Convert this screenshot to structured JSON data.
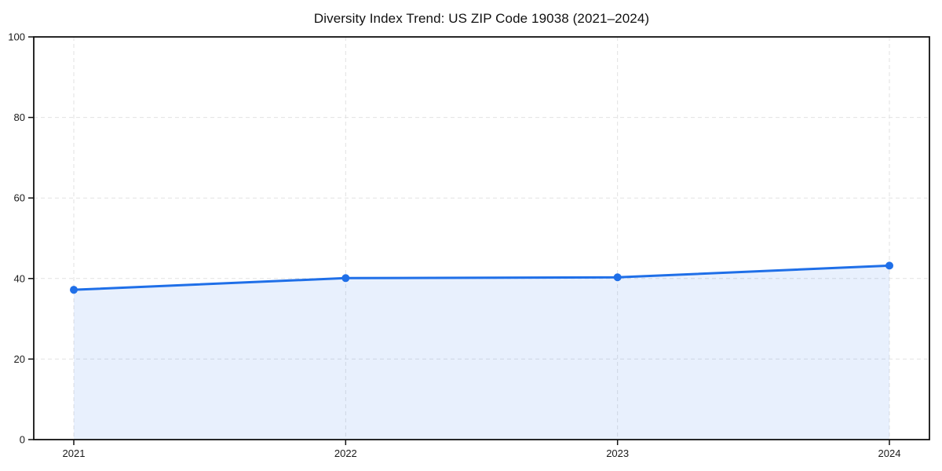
{
  "chart_data": {
    "type": "area",
    "title": "Diversity Index Trend: US ZIP Code 19038 (2021–2024)",
    "x": [
      2021,
      2022,
      2023,
      2024
    ],
    "xticklabels": [
      "2021",
      "2022",
      "2023",
      "2024"
    ],
    "series": [
      {
        "name": "Diversity Index",
        "values": [
          37.2,
          40.1,
          40.3,
          43.2
        ]
      }
    ],
    "xlabel": "",
    "ylabel": "",
    "ylim": [
      0,
      100
    ],
    "yticks": [
      0,
      20,
      40,
      60,
      80,
      100
    ],
    "grid": true,
    "grid_style": "dashed",
    "legend": "none",
    "marker": "circle",
    "marker_radius": 5,
    "line_width": 3,
    "colors": {
      "line": "#1f6fe8",
      "fill": "#1f6fe8",
      "fill_opacity": 0.1,
      "grid": "#e2e2e2",
      "axis": "#111111",
      "text": "#1a1a1a",
      "background": "#ffffff"
    }
  }
}
